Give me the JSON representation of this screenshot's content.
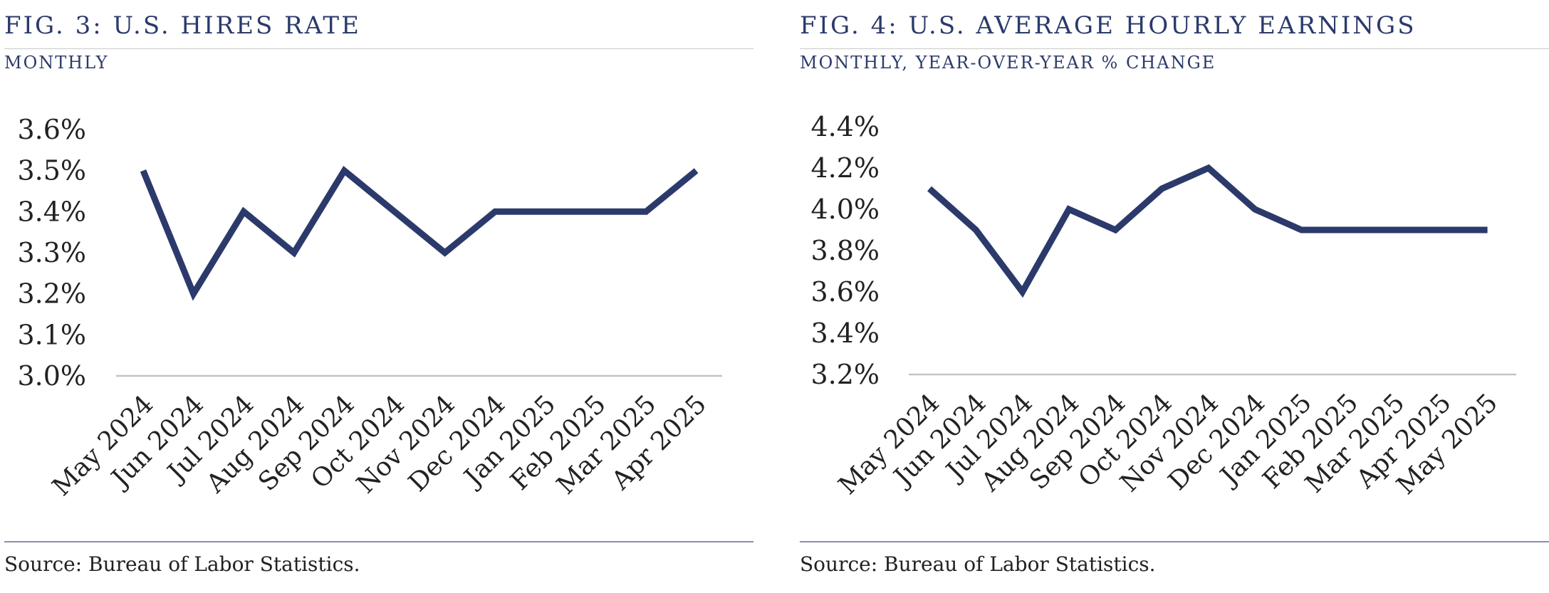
{
  "chart_data": [
    {
      "type": "line",
      "title": "FIG. 3: U.S. HIRES RATE",
      "subtitle": "MONTHLY",
      "xlabel": "",
      "ylabel": "",
      "categories": [
        "May 2024",
        "Jun 2024",
        "Jul 2024",
        "Aug 2024",
        "Sep 2024",
        "Oct 2024",
        "Nov 2024",
        "Dec 2024",
        "Jan 2025",
        "Feb 2025",
        "Mar 2025",
        "Apr 2025"
      ],
      "series": [
        {
          "name": "Hires Rate",
          "values": [
            3.5,
            3.2,
            3.4,
            3.3,
            3.5,
            3.4,
            3.3,
            3.4,
            3.4,
            3.4,
            3.4,
            3.5
          ]
        }
      ],
      "ylim": [
        3.0,
        3.6
      ],
      "yticks": [
        3.0,
        3.1,
        3.2,
        3.3,
        3.4,
        3.5,
        3.6
      ],
      "ytick_labels": [
        "3.0%",
        "3.1%",
        "3.2%",
        "3.3%",
        "3.4%",
        "3.5%",
        "3.6%"
      ],
      "source": "Source: Bureau of Labor Statistics.",
      "line_color": "#2b3a6b"
    },
    {
      "type": "line",
      "title": "FIG. 4: U.S. AVERAGE HOURLY EARNINGS",
      "subtitle": "MONTHLY,  YEAR-OVER-YEAR % CHANGE",
      "xlabel": "",
      "ylabel": "",
      "categories": [
        "May 2024",
        "Jun 2024",
        "Jul 2024",
        "Aug 2024",
        "Sep 2024",
        "Oct 2024",
        "Nov 2024",
        "Dec 2024",
        "Jan 2025",
        "Feb 2025",
        "Mar 2025",
        "Apr 2025",
        "May 2025"
      ],
      "series": [
        {
          "name": "Average Hourly Earnings YoY",
          "values": [
            4.1,
            3.9,
            3.6,
            4.0,
            3.9,
            4.1,
            4.2,
            4.0,
            3.9,
            3.9,
            3.9,
            3.9,
            3.9
          ]
        }
      ],
      "ylim": [
        3.2,
        4.4
      ],
      "yticks": [
        3.2,
        3.4,
        3.6,
        3.8,
        4.0,
        4.2,
        4.4
      ],
      "ytick_labels": [
        "3.2%",
        "3.4%",
        "3.6%",
        "3.8%",
        "4.0%",
        "4.2%",
        "4.4%"
      ],
      "source": "Source: Bureau of Labor Statistics.",
      "line_color": "#2b3a6b"
    }
  ]
}
